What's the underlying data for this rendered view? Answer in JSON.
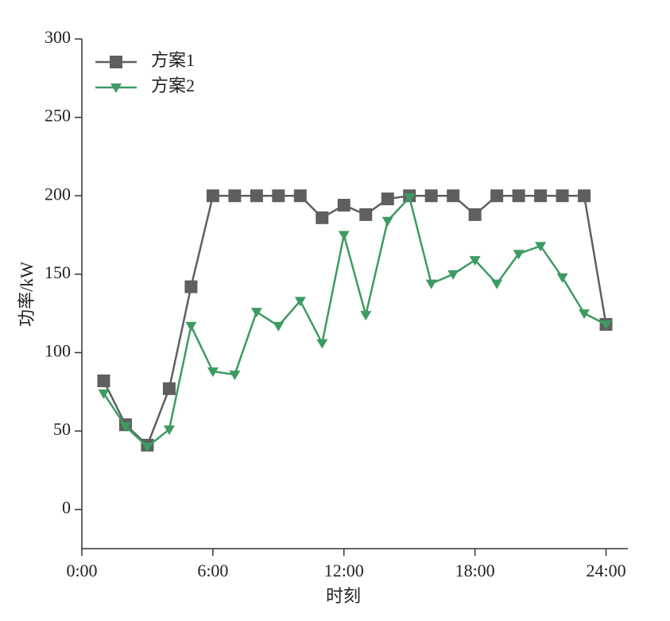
{
  "chart_data": {
    "type": "line",
    "x_label": "时刻",
    "y_label": "功率/kW",
    "x": [
      1,
      2,
      3,
      4,
      5,
      6,
      7,
      8,
      9,
      10,
      11,
      12,
      13,
      14,
      15,
      16,
      17,
      18,
      19,
      20,
      21,
      22,
      23,
      24
    ],
    "series": [
      {
        "name": "方案1",
        "color": "#5f5f5f",
        "marker": "square",
        "values": [
          82,
          54,
          41,
          77,
          142,
          200,
          200,
          200,
          200,
          200,
          186,
          194,
          188,
          198,
          200,
          200,
          200,
          188,
          200,
          200,
          200,
          200,
          200,
          118
        ]
      },
      {
        "name": "方案2",
        "color": "#3d9b62",
        "marker": "triangle-down",
        "values": [
          74,
          53,
          40,
          51,
          117,
          88,
          86,
          126,
          117,
          133,
          106,
          175,
          124,
          184,
          199,
          144,
          150,
          159,
          144,
          163,
          168,
          148,
          125,
          118
        ]
      }
    ],
    "xlim": [
      0,
      25
    ],
    "xticks": [
      {
        "value": 0,
        "label": "0:00"
      },
      {
        "value": 6,
        "label": "6:00"
      },
      {
        "value": 12,
        "label": "12:00"
      },
      {
        "value": 18,
        "label": "18:00"
      },
      {
        "value": 24,
        "label": "24:00"
      }
    ],
    "ylim": [
      -25,
      300
    ],
    "yticks": [
      0,
      50,
      100,
      150,
      200,
      250,
      300
    ],
    "legend": "upper-left"
  }
}
